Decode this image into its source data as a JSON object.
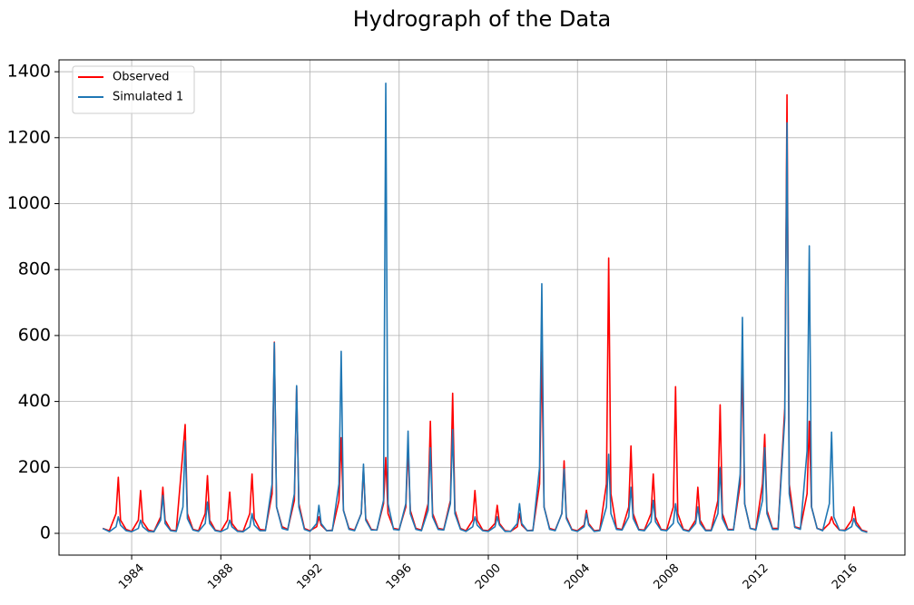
{
  "chart_data": {
    "type": "line",
    "title": "Hydrograph of the Data",
    "x": [
      1982.7,
      1983,
      1983.3,
      1983.4,
      1983.5,
      1983.75,
      1984,
      1984.3,
      1984.4,
      1984.5,
      1984.75,
      1985,
      1985.3,
      1985.4,
      1985.5,
      1985.75,
      1986,
      1986.3,
      1986.4,
      1986.5,
      1986.75,
      1987,
      1987.3,
      1987.4,
      1987.5,
      1987.75,
      1988,
      1988.3,
      1988.4,
      1988.5,
      1988.75,
      1989,
      1989.3,
      1989.4,
      1989.5,
      1989.75,
      1990,
      1990.3,
      1990.4,
      1990.5,
      1990.75,
      1991,
      1991.3,
      1991.4,
      1991.5,
      1991.75,
      1992,
      1992.3,
      1992.4,
      1992.5,
      1992.75,
      1993,
      1993.3,
      1993.4,
      1993.5,
      1993.75,
      1994,
      1994.3,
      1994.4,
      1994.5,
      1994.75,
      1995,
      1995.3,
      1995.4,
      1995.5,
      1995.75,
      1996,
      1996.3,
      1996.4,
      1996.5,
      1996.75,
      1997,
      1997.3,
      1997.4,
      1997.5,
      1997.75,
      1998,
      1998.3,
      1998.4,
      1998.5,
      1998.75,
      1999,
      1999.3,
      1999.4,
      1999.5,
      1999.75,
      2000,
      2000.3,
      2000.4,
      2000.5,
      2000.75,
      2001,
      2001.3,
      2001.4,
      2001.5,
      2001.75,
      2002,
      2002.3,
      2002.4,
      2002.5,
      2002.75,
      2003,
      2003.3,
      2003.4,
      2003.5,
      2003.75,
      2004,
      2004.3,
      2004.4,
      2004.5,
      2004.75,
      2005,
      2005.3,
      2005.4,
      2005.5,
      2005.75,
      2006,
      2006.3,
      2006.4,
      2006.5,
      2006.75,
      2007,
      2007.3,
      2007.4,
      2007.5,
      2007.75,
      2008,
      2008.3,
      2008.4,
      2008.5,
      2008.75,
      2009,
      2009.3,
      2009.4,
      2009.5,
      2009.75,
      2010,
      2010.3,
      2010.4,
      2010.5,
      2010.75,
      2011,
      2011.3,
      2011.4,
      2011.5,
      2011.75,
      2012,
      2012.3,
      2012.4,
      2012.5,
      2012.75,
      2013,
      2013.3,
      2013.4,
      2013.5,
      2013.75,
      2014,
      2014.3,
      2014.4,
      2014.5,
      2014.75,
      2015,
      2015.3,
      2015.4,
      2015.5,
      2015.75,
      2016,
      2016.3,
      2016.4,
      2016.5,
      2016.75,
      2017
    ],
    "series": [
      {
        "name": "Observed",
        "color": "#ff0000",
        "values": [
          15,
          8,
          60,
          170,
          40,
          12,
          6,
          40,
          130,
          35,
          10,
          6,
          50,
          140,
          40,
          10,
          8,
          250,
          330,
          60,
          12,
          8,
          60,
          175,
          40,
          10,
          6,
          40,
          125,
          30,
          8,
          6,
          60,
          180,
          45,
          12,
          10,
          120,
          580,
          80,
          20,
          12,
          100,
          445,
          90,
          15,
          8,
          20,
          50,
          25,
          8,
          10,
          100,
          290,
          70,
          15,
          10,
          60,
          200,
          45,
          12,
          10,
          90,
          230,
          60,
          15,
          12,
          80,
          260,
          70,
          15,
          10,
          90,
          340,
          60,
          15,
          12,
          100,
          425,
          70,
          15,
          8,
          40,
          130,
          40,
          10,
          8,
          30,
          85,
          30,
          8,
          6,
          20,
          60,
          25,
          8,
          10,
          150,
          550,
          80,
          15,
          10,
          60,
          220,
          50,
          12,
          8,
          25,
          70,
          30,
          8,
          10,
          150,
          835,
          120,
          15,
          12,
          80,
          265,
          60,
          12,
          10,
          60,
          180,
          50,
          12,
          10,
          80,
          445,
          60,
          12,
          8,
          40,
          140,
          40,
          10,
          10,
          100,
          390,
          60,
          12,
          12,
          150,
          530,
          90,
          15,
          12,
          150,
          300,
          70,
          15,
          15,
          380,
          1330,
          150,
          20,
          15,
          120,
          340,
          80,
          15,
          10,
          30,
          50,
          30,
          10,
          10,
          40,
          80,
          35,
          10,
          5
        ]
      },
      {
        "name": "Simulated 1",
        "color": "#1f77b4",
        "values": [
          15,
          5,
          20,
          50,
          25,
          8,
          5,
          15,
          40,
          20,
          6,
          5,
          40,
          115,
          30,
          8,
          6,
          80,
          280,
          45,
          10,
          6,
          30,
          95,
          30,
          8,
          5,
          15,
          40,
          20,
          6,
          5,
          20,
          60,
          25,
          8,
          8,
          150,
          578,
          80,
          15,
          10,
          120,
          448,
          80,
          12,
          6,
          30,
          85,
          30,
          8,
          8,
          150,
          552,
          70,
          12,
          8,
          60,
          210,
          40,
          10,
          10,
          100,
          1365,
          90,
          12,
          10,
          90,
          310,
          60,
          12,
          8,
          70,
          260,
          50,
          12,
          10,
          90,
          315,
          60,
          12,
          6,
          20,
          50,
          25,
          8,
          6,
          20,
          50,
          25,
          6,
          6,
          30,
          90,
          30,
          8,
          8,
          200,
          757,
          80,
          12,
          8,
          60,
          195,
          45,
          10,
          6,
          20,
          60,
          25,
          6,
          8,
          80,
          240,
          60,
          12,
          10,
          50,
          140,
          45,
          10,
          8,
          35,
          100,
          35,
          10,
          8,
          30,
          90,
          35,
          10,
          6,
          30,
          80,
          30,
          8,
          8,
          60,
          200,
          45,
          10,
          10,
          180,
          655,
          90,
          15,
          10,
          100,
          260,
          60,
          12,
          12,
          350,
          1245,
          120,
          18,
          12,
          250,
          872,
          80,
          15,
          8,
          90,
          307,
          50,
          10,
          8,
          20,
          45,
          25,
          8,
          3
        ]
      }
    ],
    "xlim": [
      1980.74,
      2018.69
    ],
    "xticks": [
      1984,
      1988,
      1992,
      1996,
      2000,
      2004,
      2008,
      2012,
      2016
    ],
    "ylim": [
      -66,
      1436
    ],
    "yticks": [
      0,
      200,
      400,
      600,
      800,
      1000,
      1200,
      1400
    ],
    "grid": true,
    "legend": "upper left"
  }
}
